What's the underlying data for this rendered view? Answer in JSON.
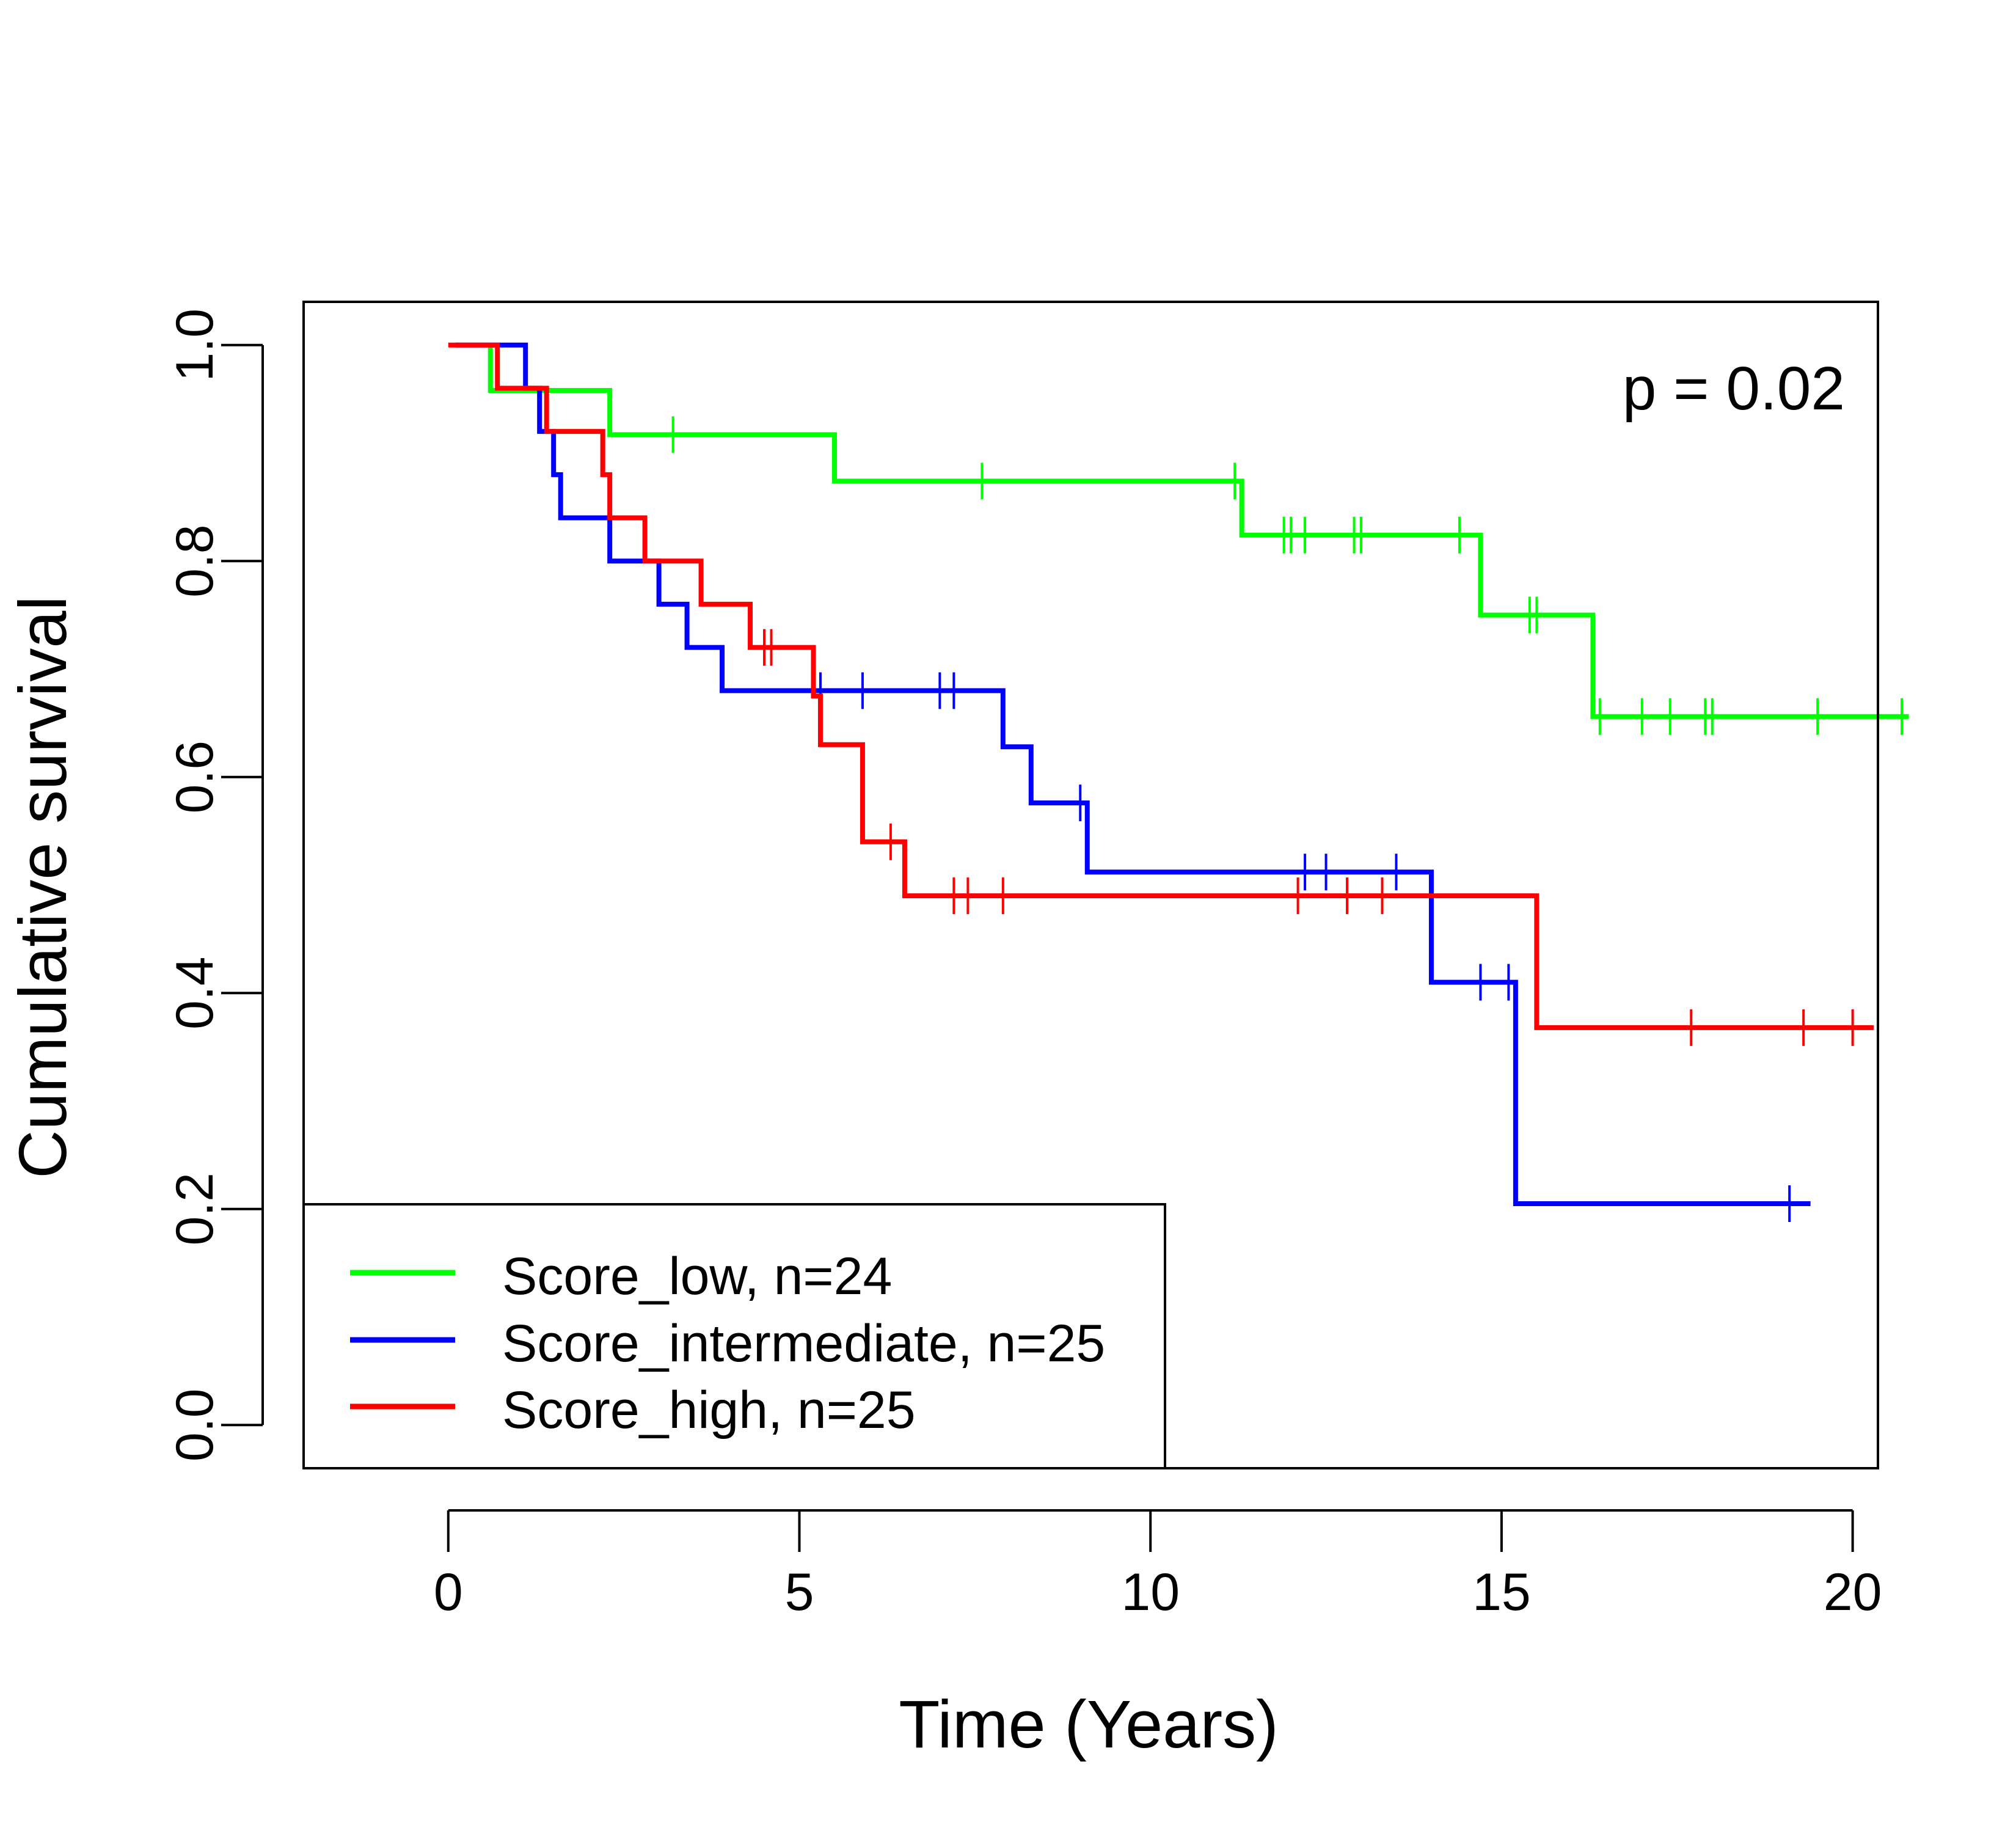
{
  "chart_data": {
    "type": "line",
    "subtype": "kaplan-meier-step",
    "title": "",
    "xlabel": "Time (Years)",
    "ylabel": "Cumulative survival",
    "xlim": [
      -2.06,
      20.36
    ],
    "ylim": [
      -0.04,
      1.04
    ],
    "x_ticks": [
      0,
      5,
      10,
      15,
      20
    ],
    "x_tick_labels": [
      "0",
      "5",
      "10",
      "15",
      "20"
    ],
    "y_ticks": [
      0.0,
      0.2,
      0.4,
      0.6,
      0.8,
      1.0
    ],
    "y_tick_labels": [
      "0.0",
      "0.2",
      "0.4",
      "0.6",
      "0.8",
      "1.0"
    ],
    "grid": false,
    "legend_position": "bottom-left",
    "annotation": "p = 0.02",
    "series": [
      {
        "name": "Score_low, n=24",
        "color": "#00ff00",
        "start": [
          0.6,
          1.0
        ],
        "steps": [
          [
            0.6,
            0.958
          ],
          [
            2.3,
            0.917
          ],
          [
            5.5,
            0.874
          ],
          [
            11.3,
            0.824
          ],
          [
            14.7,
            0.75
          ],
          [
            16.3,
            0.656
          ]
        ],
        "end_x": 20.8,
        "censor": [
          [
            3.2,
            0.917
          ],
          [
            7.6,
            0.874
          ],
          [
            11.2,
            0.874
          ],
          [
            11.9,
            0.824
          ],
          [
            12.0,
            0.824
          ],
          [
            12.2,
            0.824
          ],
          [
            12.9,
            0.824
          ],
          [
            13.0,
            0.824
          ],
          [
            14.4,
            0.824
          ],
          [
            15.4,
            0.75
          ],
          [
            15.5,
            0.75
          ],
          [
            16.4,
            0.656
          ],
          [
            17.0,
            0.656
          ],
          [
            17.4,
            0.656
          ],
          [
            17.9,
            0.656
          ],
          [
            18.0,
            0.656
          ],
          [
            19.5,
            0.656
          ],
          [
            20.7,
            0.656
          ]
        ]
      },
      {
        "name": "Score_intermediate, n=25",
        "color": "#0000ff",
        "start": [
          0.1,
          1.0
        ],
        "steps": [
          [
            1.1,
            0.96
          ],
          [
            1.3,
            0.92
          ],
          [
            1.5,
            0.88
          ],
          [
            1.6,
            0.84
          ],
          [
            2.3,
            0.8
          ],
          [
            3.0,
            0.76
          ],
          [
            3.4,
            0.72
          ],
          [
            3.9,
            0.68
          ],
          [
            7.9,
            0.628
          ],
          [
            8.3,
            0.576
          ],
          [
            9.1,
            0.512
          ],
          [
            14.0,
            0.41
          ],
          [
            15.2,
            0.205
          ]
        ],
        "end_x": 19.4,
        "censor": [
          [
            5.3,
            0.68
          ],
          [
            5.9,
            0.68
          ],
          [
            7.0,
            0.68
          ],
          [
            7.2,
            0.68
          ],
          [
            9.0,
            0.576
          ],
          [
            12.2,
            0.512
          ],
          [
            12.5,
            0.512
          ],
          [
            13.5,
            0.512
          ],
          [
            14.7,
            0.41
          ],
          [
            15.1,
            0.41
          ],
          [
            19.1,
            0.205
          ]
        ]
      },
      {
        "name": "Score_high, n=25",
        "color": "#ff0000",
        "start": [
          0.0,
          1.0
        ],
        "steps": [
          [
            0.7,
            0.96
          ],
          [
            1.4,
            0.92
          ],
          [
            2.2,
            0.88
          ],
          [
            2.3,
            0.84
          ],
          [
            2.8,
            0.8
          ],
          [
            3.6,
            0.76
          ],
          [
            4.3,
            0.72
          ],
          [
            5.2,
            0.675
          ],
          [
            5.3,
            0.63
          ],
          [
            5.9,
            0.54
          ],
          [
            6.5,
            0.49
          ],
          [
            15.5,
            0.368
          ]
        ],
        "end_x": 20.3,
        "censor": [
          [
            4.5,
            0.72
          ],
          [
            4.6,
            0.72
          ],
          [
            6.3,
            0.54
          ],
          [
            7.2,
            0.49
          ],
          [
            7.4,
            0.49
          ],
          [
            7.9,
            0.49
          ],
          [
            12.1,
            0.49
          ],
          [
            12.8,
            0.49
          ],
          [
            13.3,
            0.49
          ],
          [
            17.7,
            0.368
          ],
          [
            19.3,
            0.368
          ],
          [
            20.0,
            0.368
          ]
        ]
      }
    ]
  }
}
